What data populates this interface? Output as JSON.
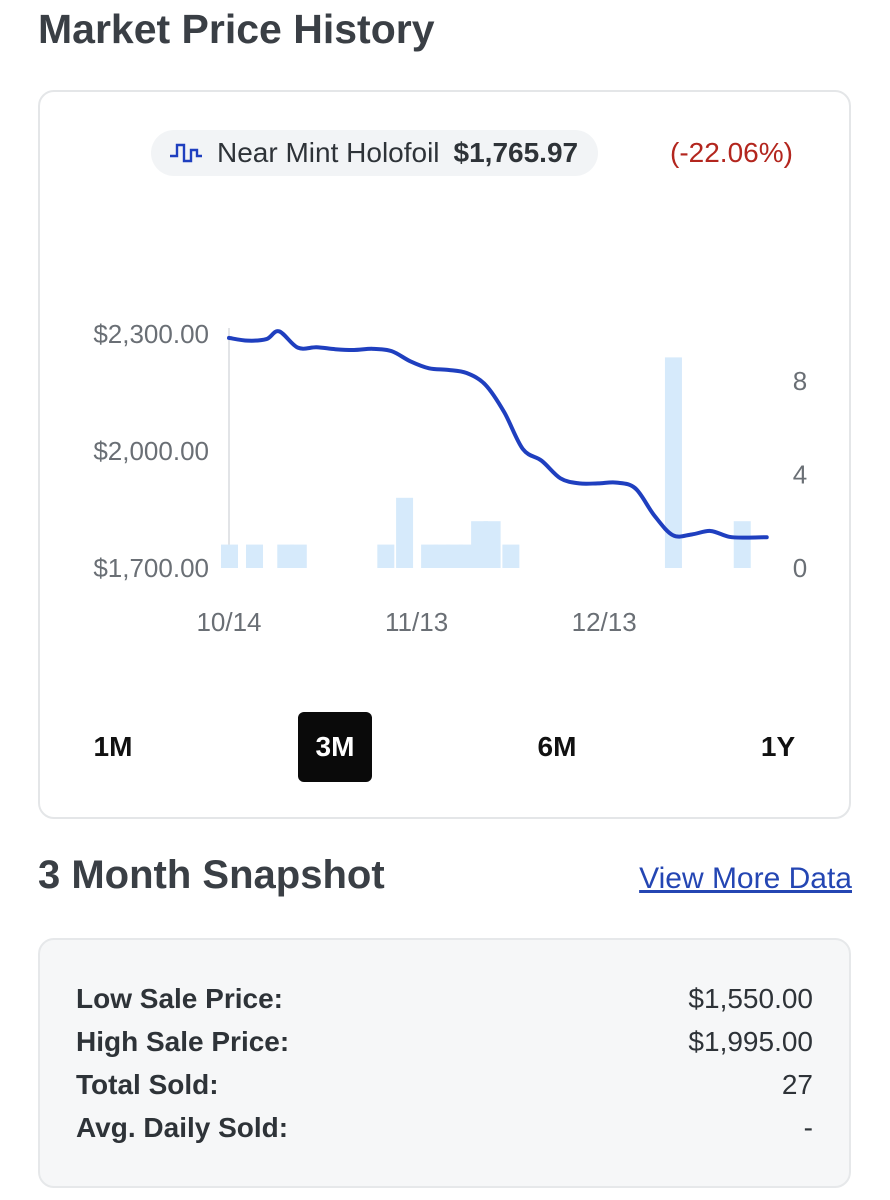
{
  "page_title": "Market Price History",
  "legend": {
    "series_name": "Near Mint Holofoil",
    "price": "$1,765.97",
    "change": "(-22.06%)",
    "line_color": "#1f3fbf",
    "change_color": "#b3261e"
  },
  "chart_data": {
    "type": "line",
    "series": [
      {
        "name": "Near Mint Holofoil",
        "axis": "left",
        "x": [
          "10/14",
          "10/17",
          "10/20",
          "10/22",
          "10/25",
          "10/28",
          "10/31",
          "11/03",
          "11/06",
          "11/09",
          "11/12",
          "11/15",
          "11/18",
          "11/21",
          "11/24",
          "11/27",
          "11/30",
          "12/03",
          "12/06",
          "12/09",
          "12/12",
          "12/15",
          "12/18",
          "12/21",
          "12/24",
          "12/27",
          "12/30",
          "01/02",
          "01/05",
          "01/08"
        ],
        "values": [
          2290,
          2283,
          2287,
          2307,
          2265,
          2266,
          2261,
          2259,
          2262,
          2256,
          2230,
          2212,
          2208,
          2200,
          2170,
          2100,
          2005,
          1975,
          1930,
          1917,
          1917,
          1919,
          1904,
          1835,
          1784,
          1786,
          1795,
          1780,
          1778,
          1779
        ]
      },
      {
        "name": "Quantity Sold",
        "type": "bar",
        "axis": "right",
        "x": [
          "10/14",
          "10/18",
          "10/23",
          "10/25",
          "11/08",
          "11/11",
          "11/15",
          "11/17",
          "11/19",
          "11/21",
          "11/23",
          "11/25",
          "11/28",
          "12/24",
          "01/04"
        ],
        "values": [
          1,
          1,
          1,
          1,
          1,
          3,
          1,
          1,
          1,
          1,
          2,
          2,
          1,
          9,
          2
        ]
      }
    ],
    "x_ticks": [
      "10/14",
      "11/13",
      "12/13"
    ],
    "y_left_ticks": [
      "$2,300.00",
      "$2,000.00",
      "$1,700.00"
    ],
    "y_left_range": [
      1700,
      2300
    ],
    "y_right_ticks": [
      "8",
      "4",
      "0"
    ],
    "y_right_range": [
      0,
      10
    ],
    "grid": false,
    "bar_color": "#d6eafb"
  },
  "ranges": {
    "buttons": [
      "1M",
      "3M",
      "6M",
      "1Y"
    ],
    "active": "3M"
  },
  "snapshot": {
    "title": "3 Month Snapshot",
    "link": "View More Data",
    "rows": [
      {
        "label": "Low Sale Price:",
        "value": "$1,550.00"
      },
      {
        "label": "High Sale Price:",
        "value": "$1,995.00"
      },
      {
        "label": "Total Sold:",
        "value": "27"
      },
      {
        "label": "Avg. Daily Sold:",
        "value": "-"
      }
    ]
  }
}
